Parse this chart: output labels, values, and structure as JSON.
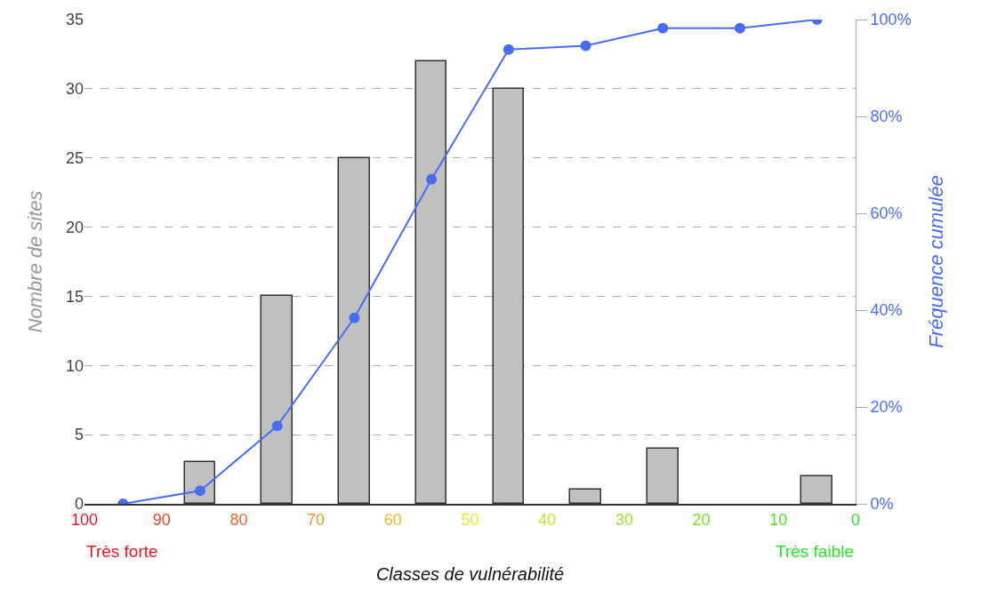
{
  "chart_data": {
    "type": "bar",
    "xlabel": "Classes de vulnérabilité",
    "ylabel": "Nombre de sites",
    "y2label": "Fréquence cumulée",
    "x": [
      95,
      85,
      75,
      65,
      55,
      45,
      35,
      25,
      15,
      5
    ],
    "series": [
      {
        "color": "#c0c0c0",
        "values": [
          0,
          3,
          15,
          25,
          32,
          30,
          1,
          4,
          0,
          2
        ]
      },
      {
        "type": "line",
        "axis": "y2",
        "color": "#4a6cf2",
        "marker": "circle",
        "line_style": "solid",
        "values": [
          0,
          2.7,
          16.1,
          38.4,
          67,
          93.8,
          94.6,
          98.2,
          98.2,
          100
        ]
      }
    ],
    "xlim": [
      100,
      0
    ],
    "xticks": [
      100,
      90,
      80,
      70,
      60,
      50,
      40,
      30,
      20,
      10,
      0
    ],
    "ylim": [
      0,
      35
    ],
    "yticks": [
      0,
      5,
      10,
      15,
      20,
      25,
      30,
      35
    ],
    "y2lim": [
      0,
      100
    ],
    "y2ticks": [
      {
        "value": 0,
        "label": "0%"
      },
      {
        "value": 20,
        "label": "20%"
      },
      {
        "value": 40,
        "label": "40%"
      },
      {
        "value": 60,
        "label": "60%"
      },
      {
        "value": 80,
        "label": "80%"
      },
      {
        "value": 100,
        "label": "100%"
      }
    ],
    "grid": "y",
    "annotations": [
      "Très forte",
      "Très faible"
    ]
  }
}
